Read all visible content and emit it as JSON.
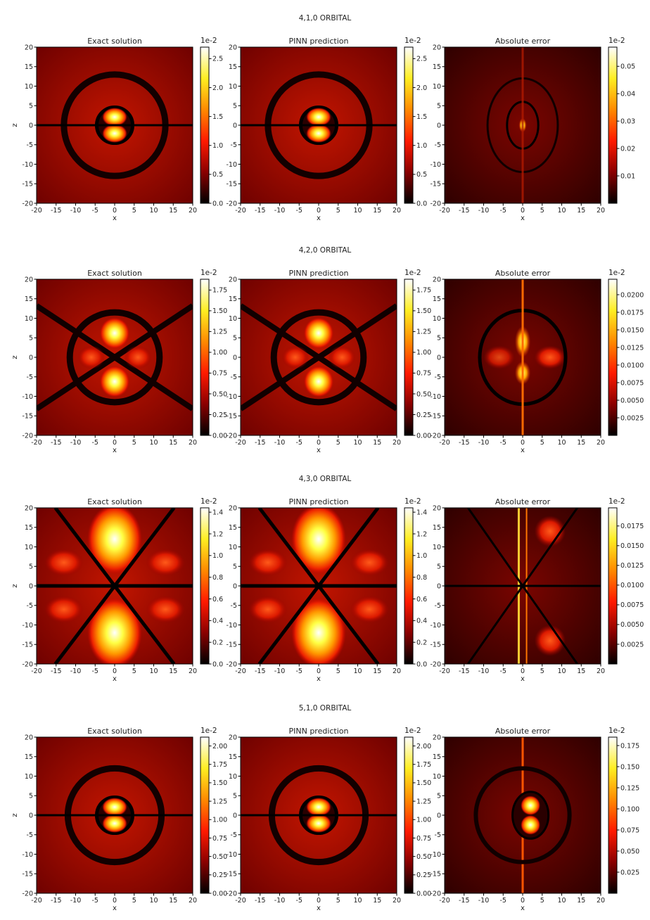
{
  "figure": {
    "colors": {
      "text": "#222222",
      "axis": "#000000",
      "colormap": [
        "#000000",
        "#990000",
        "#ff3300",
        "#ff9900",
        "#ffff33",
        "#ffffff"
      ]
    },
    "rows": [
      {
        "title": "4,1,0 ORBITAL",
        "panels": [
          {
            "title": "Exact solution",
            "xlabel": "x",
            "ylabel": "z",
            "cbar_ticks": [
              "0.0",
              "0.5",
              "1.0",
              "1.5",
              "2.0",
              "2.5"
            ],
            "cbar_offset": "1e-2"
          },
          {
            "title": "PINN prediction",
            "xlabel": "x",
            "ylabel": "",
            "cbar_ticks": [
              "0.0",
              "0.5",
              "1.0",
              "1.5",
              "2.0",
              "2.5"
            ],
            "cbar_offset": "1e-2"
          },
          {
            "title": "Absolute error",
            "xlabel": "x",
            "ylabel": "",
            "cbar_ticks": [
              "0.01",
              "0.02",
              "0.03",
              "0.04",
              "0.05"
            ],
            "cbar_offset": "1e-2"
          }
        ]
      },
      {
        "title": "4,2,0 ORBITAL",
        "panels": [
          {
            "title": "Exact solution",
            "xlabel": "x",
            "ylabel": "z",
            "cbar_ticks": [
              "0.00",
              "0.25",
              "0.50",
              "0.75",
              "1.00",
              "1.25",
              "1.50",
              "1.75"
            ],
            "cbar_offset": "1e-2"
          },
          {
            "title": "PINN prediction",
            "xlabel": "x",
            "ylabel": "",
            "cbar_ticks": [
              "0.00",
              "0.25",
              "0.50",
              "0.75",
              "1.00",
              "1.25",
              "1.50",
              "1.75"
            ],
            "cbar_offset": "1e-2"
          },
          {
            "title": "Absolute error",
            "xlabel": "x",
            "ylabel": "",
            "cbar_ticks": [
              "0.0025",
              "0.0050",
              "0.0075",
              "0.0100",
              "0.0125",
              "0.0150",
              "0.0175",
              "0.0200"
            ],
            "cbar_offset": "1e-2"
          }
        ]
      },
      {
        "title": "4,3,0 ORBITAL",
        "panels": [
          {
            "title": "Exact solution",
            "xlabel": "x",
            "ylabel": "z",
            "cbar_ticks": [
              "0.0",
              "0.2",
              "0.4",
              "0.6",
              "0.8",
              "1.0",
              "1.2",
              "1.4"
            ],
            "cbar_offset": "1e-2"
          },
          {
            "title": "PINN prediction",
            "xlabel": "x",
            "ylabel": "",
            "cbar_ticks": [
              "0.0",
              "0.2",
              "0.4",
              "0.6",
              "0.8",
              "1.0",
              "1.2",
              "1.4"
            ],
            "cbar_offset": "1e-2"
          },
          {
            "title": "Absolute error",
            "xlabel": "x",
            "ylabel": "",
            "cbar_ticks": [
              "0.0025",
              "0.0050",
              "0.0075",
              "0.0100",
              "0.0125",
              "0.0150",
              "0.0175"
            ],
            "cbar_offset": "1e-2"
          }
        ]
      },
      {
        "title": "5,1,0 ORBITAL",
        "panels": [
          {
            "title": "Exact solution",
            "xlabel": "x",
            "ylabel": "z",
            "cbar_ticks": [
              "0.00",
              "0.25",
              "0.50",
              "0.75",
              "1.00",
              "1.25",
              "1.50",
              "1.75",
              "2.00"
            ],
            "cbar_offset": "1e-2"
          },
          {
            "title": "PINN prediction",
            "xlabel": "x",
            "ylabel": "",
            "cbar_ticks": [
              "0.00",
              "0.25",
              "0.50",
              "0.75",
              "1.00",
              "1.25",
              "1.50",
              "1.75",
              "2.00"
            ],
            "cbar_offset": "1e-2"
          },
          {
            "title": "Absolute error",
            "xlabel": "x",
            "ylabel": "",
            "cbar_ticks": [
              "0.025",
              "0.050",
              "0.075",
              "0.100",
              "0.125",
              "0.150",
              "0.175"
            ],
            "cbar_offset": "1e-2"
          }
        ]
      }
    ]
  },
  "chart_data": [
    {
      "type": "heatmap",
      "title": "Exact solution",
      "xlabel": "x",
      "ylabel": "z",
      "xlim": [
        -20,
        20
      ],
      "ylim": [
        -20,
        20
      ],
      "x_ticks": [
        -20,
        -15,
        -10,
        -5,
        0,
        5,
        10,
        15,
        20
      ],
      "y_ticks": [
        -20,
        -15,
        -10,
        -5,
        0,
        5,
        10,
        15,
        20
      ],
      "colorbar": {
        "min": 0.0,
        "max": 2.7,
        "ticks": [
          0.0,
          0.5,
          1.0,
          1.5,
          2.0,
          2.5
        ],
        "offset": "1e-2"
      }
    },
    {
      "type": "heatmap",
      "title": "PINN prediction",
      "xlabel": "x",
      "ylabel": "",
      "xlim": [
        -20,
        20
      ],
      "ylim": [
        -20,
        20
      ],
      "x_ticks": [
        -20,
        -15,
        -10,
        -5,
        0,
        5,
        10,
        15,
        20
      ],
      "y_ticks": [
        -20,
        -15,
        -10,
        -5,
        0,
        5,
        10,
        15,
        20
      ],
      "colorbar": {
        "min": 0.0,
        "max": 2.7,
        "ticks": [
          0.0,
          0.5,
          1.0,
          1.5,
          2.0,
          2.5
        ],
        "offset": "1e-2"
      }
    },
    {
      "type": "heatmap",
      "title": "Absolute error",
      "xlabel": "x",
      "ylabel": "",
      "xlim": [
        -20,
        20
      ],
      "ylim": [
        -20,
        20
      ],
      "x_ticks": [
        -20,
        -15,
        -10,
        -5,
        0,
        5,
        10,
        15,
        20
      ],
      "y_ticks": [
        -20,
        -15,
        -10,
        -5,
        0,
        5,
        10,
        15,
        20
      ],
      "colorbar": {
        "min": 0.0,
        "max": 0.057,
        "ticks": [
          0.01,
          0.02,
          0.03,
          0.04,
          0.05
        ],
        "offset": "1e-2"
      }
    },
    {
      "type": "heatmap",
      "title": "Exact solution",
      "xlabel": "x",
      "ylabel": "z",
      "xlim": [
        -20,
        20
      ],
      "ylim": [
        -20,
        20
      ],
      "x_ticks": [
        -20,
        -15,
        -10,
        -5,
        0,
        5,
        10,
        15,
        20
      ],
      "y_ticks": [
        -20,
        -15,
        -10,
        -5,
        0,
        5,
        10,
        15,
        20
      ],
      "colorbar": {
        "min": 0.0,
        "max": 1.88,
        "ticks": [
          0.0,
          0.25,
          0.5,
          0.75,
          1.0,
          1.25,
          1.5,
          1.75
        ],
        "offset": "1e-2"
      }
    },
    {
      "type": "heatmap",
      "title": "PINN prediction",
      "xlabel": "x",
      "ylabel": "",
      "xlim": [
        -20,
        20
      ],
      "ylim": [
        -20,
        20
      ],
      "x_ticks": [
        -20,
        -15,
        -10,
        -5,
        0,
        5,
        10,
        15,
        20
      ],
      "y_ticks": [
        -20,
        -15,
        -10,
        -5,
        0,
        5,
        10,
        15,
        20
      ],
      "colorbar": {
        "min": 0.0,
        "max": 1.88,
        "ticks": [
          0.0,
          0.25,
          0.5,
          0.75,
          1.0,
          1.25,
          1.5,
          1.75
        ],
        "offset": "1e-2"
      }
    },
    {
      "type": "heatmap",
      "title": "Absolute error",
      "xlabel": "x",
      "ylabel": "",
      "xlim": [
        -20,
        20
      ],
      "ylim": [
        -20,
        20
      ],
      "x_ticks": [
        -20,
        -15,
        -10,
        -5,
        0,
        5,
        10,
        15,
        20
      ],
      "y_ticks": [
        -20,
        -15,
        -10,
        -5,
        0,
        5,
        10,
        15,
        20
      ],
      "colorbar": {
        "min": 0.0,
        "max": 0.0222,
        "ticks": [
          0.0025,
          0.005,
          0.0075,
          0.01,
          0.0125,
          0.015,
          0.0175,
          0.02
        ],
        "offset": "1e-2"
      }
    },
    {
      "type": "heatmap",
      "title": "Exact solution",
      "xlabel": "x",
      "ylabel": "z",
      "xlim": [
        -20,
        20
      ],
      "ylim": [
        -20,
        20
      ],
      "x_ticks": [
        -20,
        -15,
        -10,
        -5,
        0,
        5,
        10,
        15,
        20
      ],
      "y_ticks": [
        -20,
        -15,
        -10,
        -5,
        0,
        5,
        10,
        15,
        20
      ],
      "colorbar": {
        "min": 0.0,
        "max": 1.44,
        "ticks": [
          0.0,
          0.2,
          0.4,
          0.6,
          0.8,
          1.0,
          1.2,
          1.4
        ],
        "offset": "1e-2"
      }
    },
    {
      "type": "heatmap",
      "title": "PINN prediction",
      "xlabel": "x",
      "ylabel": "",
      "xlim": [
        -20,
        20
      ],
      "ylim": [
        -20,
        20
      ],
      "x_ticks": [
        -20,
        -15,
        -10,
        -5,
        0,
        5,
        10,
        15,
        20
      ],
      "y_ticks": [
        -20,
        -15,
        -10,
        -5,
        0,
        5,
        10,
        15,
        20
      ],
      "colorbar": {
        "min": 0.0,
        "max": 1.44,
        "ticks": [
          0.0,
          0.2,
          0.4,
          0.6,
          0.8,
          1.0,
          1.2,
          1.4
        ],
        "offset": "1e-2"
      }
    },
    {
      "type": "heatmap",
      "title": "Absolute error",
      "xlabel": "x",
      "ylabel": "",
      "xlim": [
        -20,
        20
      ],
      "ylim": [
        -20,
        20
      ],
      "x_ticks": [
        -20,
        -15,
        -10,
        -5,
        0,
        5,
        10,
        15,
        20
      ],
      "y_ticks": [
        -20,
        -15,
        -10,
        -5,
        0,
        5,
        10,
        15,
        20
      ],
      "colorbar": {
        "min": 0.0,
        "max": 0.0198,
        "ticks": [
          0.0025,
          0.005,
          0.0075,
          0.01,
          0.0125,
          0.015,
          0.0175
        ],
        "offset": "1e-2"
      }
    },
    {
      "type": "heatmap",
      "title": "Exact solution",
      "xlabel": "x",
      "ylabel": "z",
      "xlim": [
        -20,
        20
      ],
      "ylim": [
        -20,
        20
      ],
      "x_ticks": [
        -20,
        -15,
        -10,
        -5,
        0,
        5,
        10,
        15,
        20
      ],
      "y_ticks": [
        -20,
        -15,
        -10,
        -5,
        0,
        5,
        10,
        15,
        20
      ],
      "colorbar": {
        "min": 0.0,
        "max": 2.12,
        "ticks": [
          0.0,
          0.25,
          0.5,
          0.75,
          1.0,
          1.25,
          1.5,
          1.75,
          2.0
        ],
        "offset": "1e-2"
      }
    },
    {
      "type": "heatmap",
      "title": "PINN prediction",
      "xlabel": "x",
      "ylabel": "",
      "xlim": [
        -20,
        20
      ],
      "ylim": [
        -20,
        20
      ],
      "x_ticks": [
        -20,
        -15,
        -10,
        -5,
        0,
        5,
        10,
        15,
        20
      ],
      "y_ticks": [
        -20,
        -15,
        -10,
        -5,
        0,
        5,
        10,
        15,
        20
      ],
      "colorbar": {
        "min": 0.0,
        "max": 2.12,
        "ticks": [
          0.0,
          0.25,
          0.5,
          0.75,
          1.0,
          1.25,
          1.5,
          1.75,
          2.0
        ],
        "offset": "1e-2"
      }
    },
    {
      "type": "heatmap",
      "title": "Absolute error",
      "xlabel": "x",
      "ylabel": "",
      "xlim": [
        -20,
        20
      ],
      "ylim": [
        -20,
        20
      ],
      "x_ticks": [
        -20,
        -15,
        -10,
        -5,
        0,
        5,
        10,
        15,
        20
      ],
      "y_ticks": [
        -20,
        -15,
        -10,
        -5,
        0,
        5,
        10,
        15,
        20
      ],
      "colorbar": {
        "min": 0.0,
        "max": 0.185,
        "ticks": [
          0.025,
          0.05,
          0.075,
          0.1,
          0.125,
          0.15,
          0.175
        ],
        "offset": "1e-2"
      }
    }
  ]
}
